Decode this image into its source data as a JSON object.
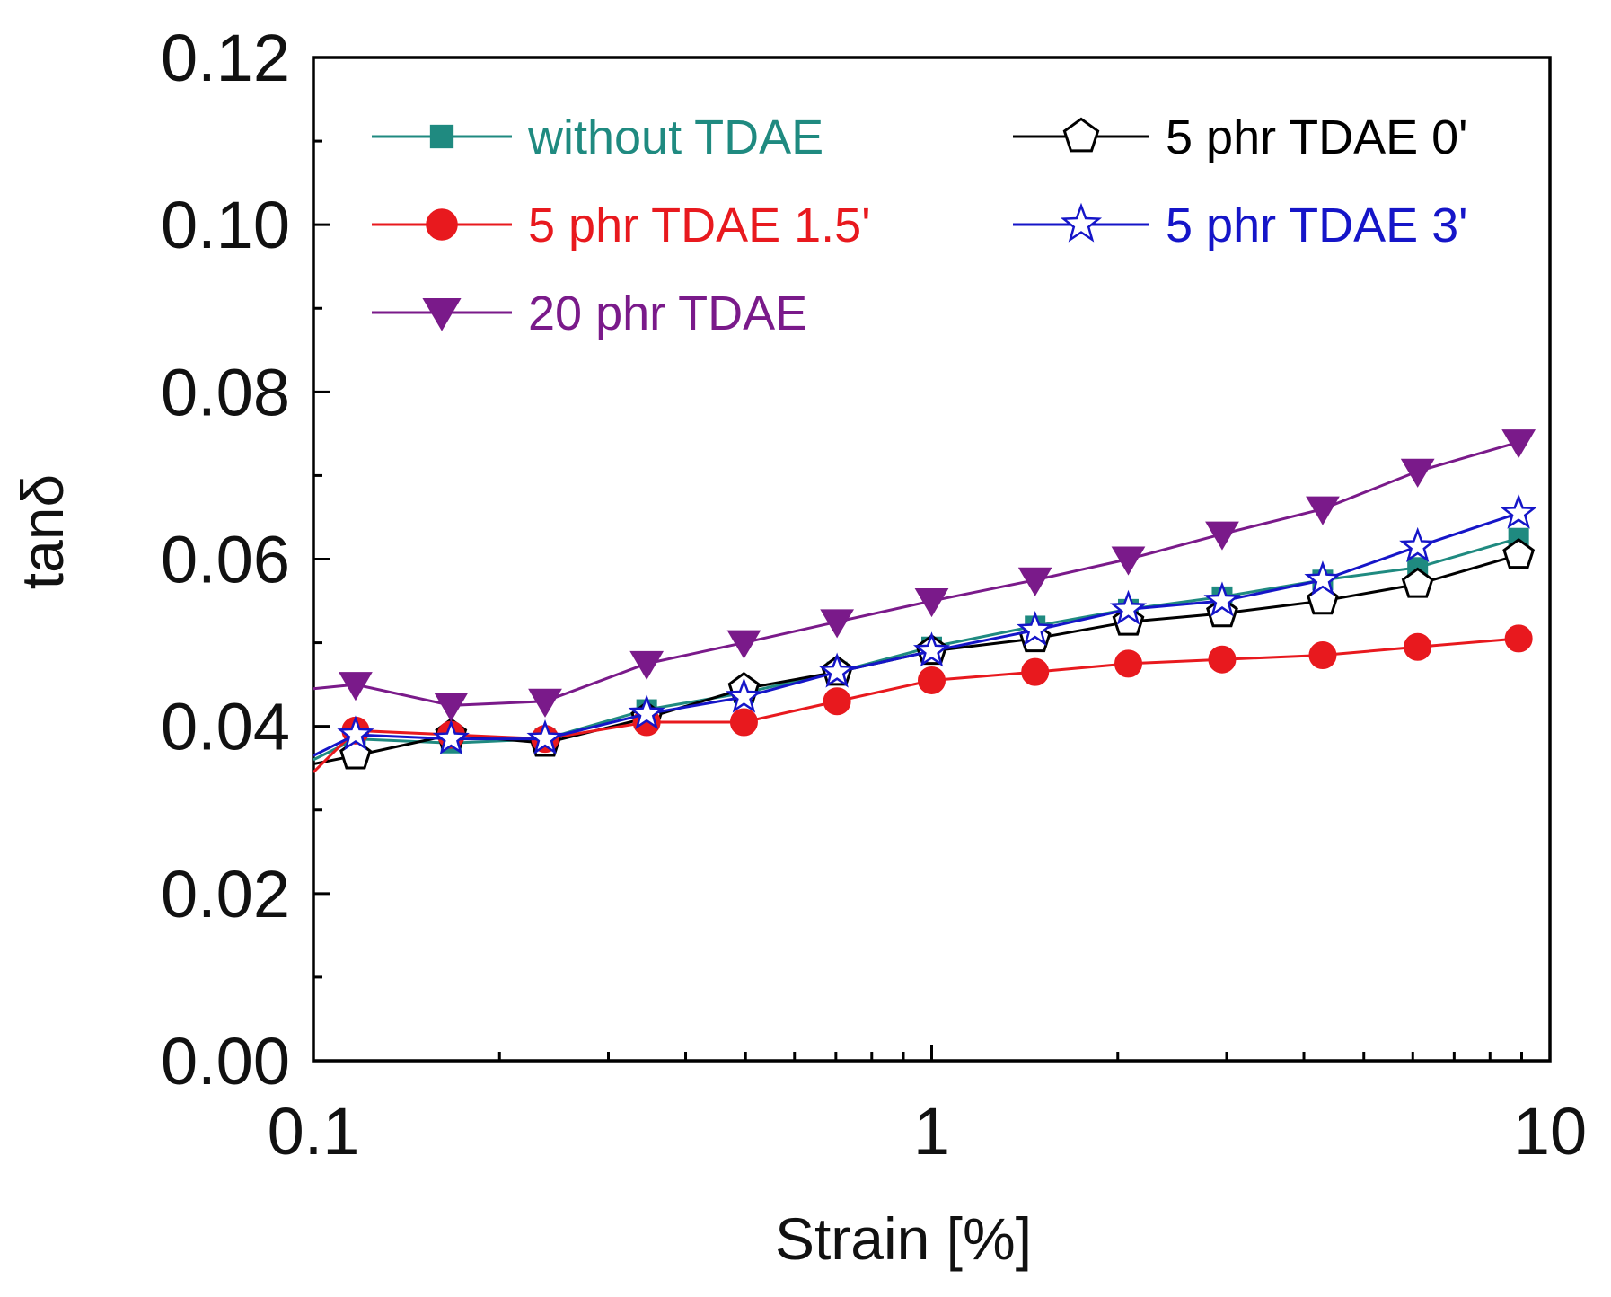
{
  "chart_data": {
    "type": "line",
    "title": "",
    "xlabel": "Strain [%]",
    "ylabel": "tanδ",
    "xscale": "log",
    "xlim": [
      0.1,
      10
    ],
    "ylim": [
      0.0,
      0.12
    ],
    "x_ticks": [
      0.1,
      1,
      10
    ],
    "x_tick_labels": [
      "0.1",
      "1",
      "10"
    ],
    "y_ticks": [
      0.0,
      0.02,
      0.04,
      0.06,
      0.08,
      0.1,
      0.12
    ],
    "y_tick_labels": [
      "0.00",
      "0.02",
      "0.04",
      "0.06",
      "0.08",
      "0.10",
      "0.12"
    ],
    "grid": false,
    "legend_position": "top",
    "x": [
      0.1,
      0.117,
      0.167,
      0.237,
      0.346,
      0.497,
      0.703,
      1.0,
      1.47,
      2.08,
      2.95,
      4.29,
      6.11,
      8.9
    ],
    "series": [
      {
        "name": "without TDAE",
        "color": "#1f8a80",
        "marker": "square",
        "values": [
          0.036,
          0.0385,
          0.038,
          0.0385,
          0.042,
          0.044,
          0.0465,
          0.0495,
          0.052,
          0.054,
          0.0555,
          0.0575,
          0.059,
          0.0625
        ]
      },
      {
        "name": "5 phr TDAE 0'",
        "color": "#000000",
        "marker": "pentagon",
        "values": [
          0.0355,
          0.0365,
          0.039,
          0.038,
          0.041,
          0.0445,
          0.0465,
          0.049,
          0.0505,
          0.0525,
          0.0535,
          0.055,
          0.057,
          0.0605
        ]
      },
      {
        "name": "5 phr TDAE 1.5'",
        "color": "#e8191e",
        "marker": "circle",
        "values": [
          0.0345,
          0.0395,
          0.039,
          0.0385,
          0.0405,
          0.0405,
          0.043,
          0.0455,
          0.0465,
          0.0475,
          0.048,
          0.0485,
          0.0495,
          0.0505
        ]
      },
      {
        "name": "5 phr TDAE 3'",
        "color": "#1515c8",
        "marker": "star",
        "values": [
          0.0365,
          0.039,
          0.0385,
          0.0385,
          0.0415,
          0.0435,
          0.0465,
          0.049,
          0.0515,
          0.054,
          0.055,
          0.0575,
          0.0615,
          0.0655
        ]
      },
      {
        "name": "20 phr TDAE",
        "color": "#7a1a8a",
        "marker": "triangle-down",
        "values": [
          0.0445,
          0.045,
          0.0425,
          0.043,
          0.0475,
          0.05,
          0.0525,
          0.055,
          0.0575,
          0.06,
          0.063,
          0.066,
          0.0705,
          0.074
        ]
      }
    ],
    "legend": {
      "columns": [
        [
          "without TDAE",
          "5 phr TDAE 1.5'",
          "20 phr TDAE"
        ],
        [
          "5 phr TDAE 0'",
          "5 phr TDAE 3'"
        ]
      ]
    }
  }
}
